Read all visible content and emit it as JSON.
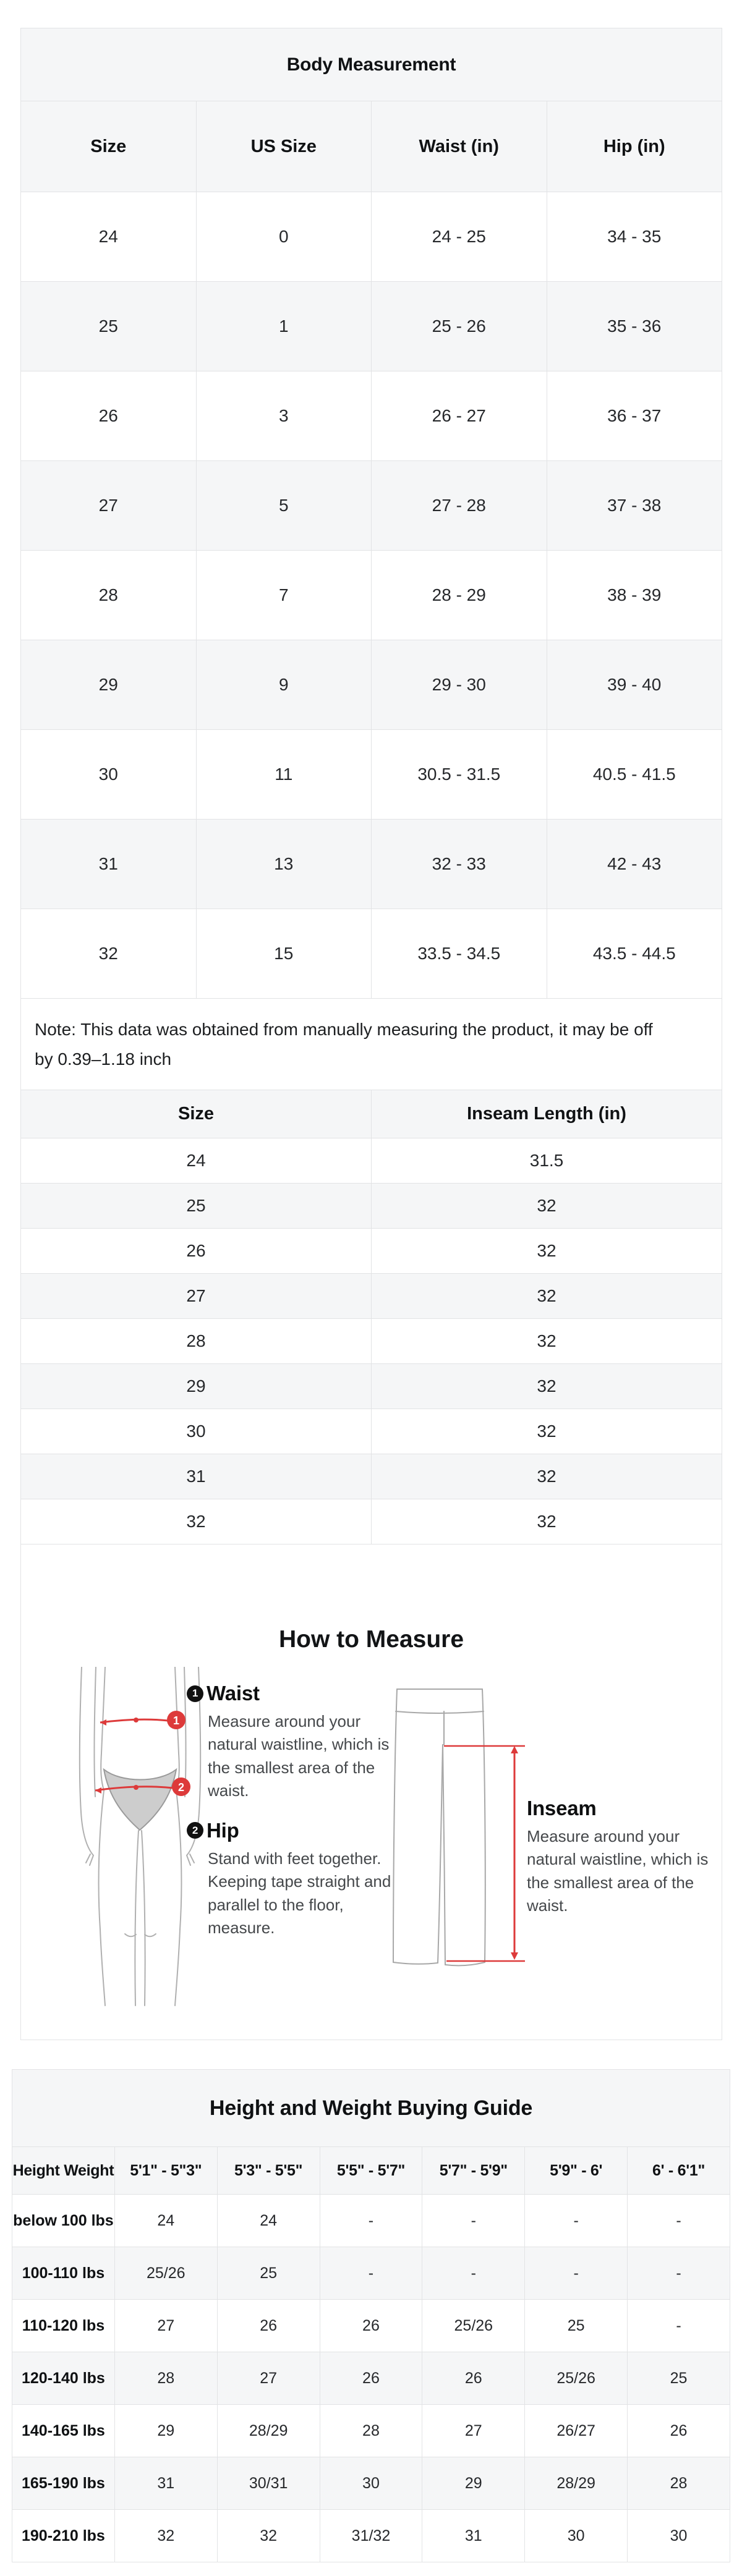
{
  "colors": {
    "accent_red": "#dd3a3a",
    "table_gray": "#f5f6f7",
    "table_border": "#e2e3e5",
    "illustration_gray": "#a8a8a8"
  },
  "body_measurement_table": {
    "title": "Body Measurement",
    "columns": [
      "Size",
      "US Size",
      "Waist (in)",
      "Hip (in)"
    ],
    "rows": [
      [
        "24",
        "0",
        "24 - 25",
        "34 - 35"
      ],
      [
        "25",
        "1",
        "25 - 26",
        "35 - 36"
      ],
      [
        "26",
        "3",
        "26 - 27",
        "36 - 37"
      ],
      [
        "27",
        "5",
        "27 - 28",
        "37 - 38"
      ],
      [
        "28",
        "7",
        "28 - 29",
        "38 - 39"
      ],
      [
        "29",
        "9",
        "29 - 30",
        "39 - 40"
      ],
      [
        "30",
        "11",
        "30.5 - 31.5",
        "40.5 - 41.5"
      ],
      [
        "31",
        "13",
        "32 - 33",
        "42 - 43"
      ],
      [
        "32",
        "15",
        "33.5 - 34.5",
        "43.5 - 44.5"
      ]
    ],
    "note": "Note: This data was obtained from manually measuring the product, it may be off by 0.39–1.18 inch"
  },
  "inseam_table": {
    "columns": [
      "Size",
      "Inseam Length (in)"
    ],
    "rows": [
      [
        "24",
        "31.5"
      ],
      [
        "25",
        "32"
      ],
      [
        "26",
        "32"
      ],
      [
        "27",
        "32"
      ],
      [
        "28",
        "32"
      ],
      [
        "29",
        "32"
      ],
      [
        "30",
        "32"
      ],
      [
        "31",
        "32"
      ],
      [
        "32",
        "32"
      ]
    ]
  },
  "how_to_measure": {
    "title": "How to Measure",
    "waist": {
      "badge": "1",
      "label": "Waist",
      "text": "Measure around your natural waistline, which is the smallest area of the waist."
    },
    "hip": {
      "badge": "2",
      "label": "Hip",
      "text": "Stand with feet together. Keeping tape straight and parallel to the floor, measure."
    },
    "inseam": {
      "label": "Inseam",
      "text": "Measure around your natural waistline, which is the smallest area of the waist."
    },
    "figure": {
      "waist_badge": "1",
      "hip_badge": "2"
    }
  },
  "buying_guide": {
    "title": "Height and Weight Buying Guide",
    "columns": [
      "Height Weight",
      "5'1\" - 5\"3\"",
      "5'3\" - 5'5\"",
      "5'5\" - 5'7\"",
      "5'7\" - 5'9\"",
      "5'9\" - 6'",
      "6' - 6'1\""
    ],
    "rows": [
      {
        "label": "below 100 lbs",
        "values": [
          "24",
          "24",
          "-",
          "-",
          "-",
          "-"
        ]
      },
      {
        "label": "100-110 lbs",
        "values": [
          "25/26",
          "25",
          "-",
          "-",
          "-",
          "-"
        ]
      },
      {
        "label": "110-120 lbs",
        "values": [
          "27",
          "26",
          "26",
          "25/26",
          "25",
          "-"
        ]
      },
      {
        "label": "120-140 lbs",
        "values": [
          "28",
          "27",
          "26",
          "26",
          "25/26",
          "25"
        ]
      },
      {
        "label": "140-165 lbs",
        "values": [
          "29",
          "28/29",
          "28",
          "27",
          "26/27",
          "26"
        ]
      },
      {
        "label": "165-190 lbs",
        "values": [
          "31",
          "30/31",
          "30",
          "29",
          "28/29",
          "28"
        ]
      },
      {
        "label": "190-210 lbs",
        "values": [
          "32",
          "32",
          "31/32",
          "31",
          "30",
          "30"
        ]
      }
    ]
  }
}
